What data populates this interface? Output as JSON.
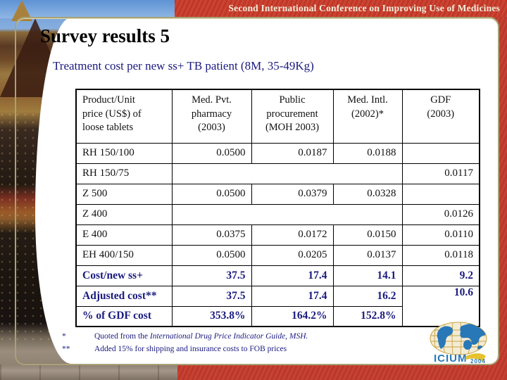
{
  "banner": {
    "text": "Second International Conference on Improving Use of Medicines"
  },
  "slide": {
    "title": "Survey results 5",
    "subtitle": "Treatment cost per new ss+ TB patient (8M, 35-49Kg)"
  },
  "table": {
    "headers": [
      {
        "lines": [
          "Product/Unit",
          "price (US$) of",
          "loose tablets"
        ]
      },
      {
        "lines": [
          "Med. Pvt.",
          "pharmacy",
          "(2003)"
        ]
      },
      {
        "lines": [
          "Public",
          "procurement",
          "(MOH 2003)"
        ]
      },
      {
        "lines": [
          "Med. Intl.",
          "(2002)*"
        ]
      },
      {
        "lines": [
          "GDF",
          "(2003)"
        ]
      }
    ],
    "rows": [
      {
        "label": "RH 150/100",
        "type": "product",
        "cells": [
          {
            "t": "0.0500"
          },
          {
            "t": "0.0187"
          },
          {
            "t": "0.0188"
          },
          {
            "t": ""
          }
        ]
      },
      {
        "label": "RH 150/75",
        "type": "product",
        "cells": [
          {
            "t": "",
            "colspan": 3
          },
          {
            "t": "0.0117"
          }
        ]
      },
      {
        "label": "Z 500",
        "type": "product",
        "cells": [
          {
            "t": "0.0500"
          },
          {
            "t": "0.0379"
          },
          {
            "t": "0.0328"
          },
          {
            "t": ""
          }
        ]
      },
      {
        "label": "Z 400",
        "type": "product",
        "cells": [
          {
            "t": "",
            "colspan": 3
          },
          {
            "t": "0.0126"
          }
        ]
      },
      {
        "label": "E 400",
        "type": "product",
        "cells": [
          {
            "t": "0.0375"
          },
          {
            "t": "0.0172"
          },
          {
            "t": "0.0150"
          },
          {
            "t": "0.0110"
          }
        ]
      },
      {
        "label": "EH 400/150",
        "type": "product",
        "cells": [
          {
            "t": "0.0500"
          },
          {
            "t": "0.0205"
          },
          {
            "t": "0.0137"
          },
          {
            "t": "0.0118"
          }
        ]
      },
      {
        "label": "Cost/new ss+",
        "type": "summary",
        "cells": [
          {
            "t": "37.5"
          },
          {
            "t": "17.4"
          },
          {
            "t": "14.1"
          },
          {
            "t": "9.2"
          }
        ]
      },
      {
        "label": "Adjusted cost**",
        "type": "summary",
        "cells": [
          {
            "t": "37.5"
          },
          {
            "t": "17.4"
          },
          {
            "t": "16.2"
          },
          {
            "t": "10.6",
            "rowspan": 2
          }
        ]
      },
      {
        "label": "% of GDF cost",
        "type": "summary",
        "cells": [
          {
            "t": "353.8%"
          },
          {
            "t": "164.2%"
          },
          {
            "t": "152.8%"
          }
        ]
      }
    ]
  },
  "footnotes": [
    {
      "marker": "*",
      "prefix": "Quoted from the ",
      "italic": "International Drug Price Indicator Guide, MSH.",
      "suffix": ""
    },
    {
      "marker": "**",
      "prefix": "Added 15% for shipping and insurance costs to FOB prices",
      "italic": "",
      "suffix": ""
    }
  ],
  "logo": {
    "name": "ICIUM",
    "year": "2004"
  },
  "colors": {
    "red": "#c43b2c",
    "red_banner": "#c93a29",
    "frame_tan": "#a8a276",
    "navy_text": "#1a1a80",
    "banner_text_cream": "#f2ecd9",
    "logo_blue": "#2878b8",
    "sky_blue": "#6d9bd6"
  }
}
